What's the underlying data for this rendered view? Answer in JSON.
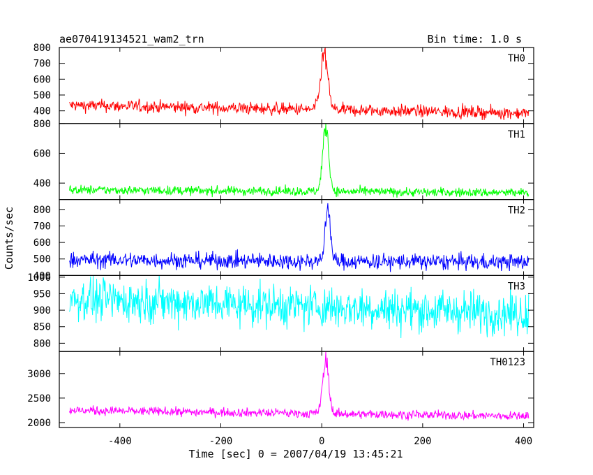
{
  "chart_data": {
    "type": "line",
    "title": "ae070419134521_wam2_trn",
    "bin_label": "Bin time: 1.0 s",
    "xlabel": "Time [sec] 0 = 2007/04/19 13:45:21",
    "ylabel": "Counts/sec",
    "xlim": [
      -520,
      420
    ],
    "x_ticks": [
      -400,
      -200,
      0,
      200,
      400
    ],
    "series_x_range": [
      -500,
      410
    ],
    "panels": [
      {
        "name": "TH0",
        "color": "#ff0000",
        "ylim": [
          320,
          800
        ],
        "y_ticks": [
          400,
          500,
          600,
          700,
          800
        ],
        "baseline_start": 435,
        "baseline_end": 385,
        "noise": 28,
        "peak": 780,
        "peak_time": 5,
        "peak_width": 7
      },
      {
        "name": "TH1",
        "color": "#00ff00",
        "ylim": [
          290,
          800
        ],
        "y_ticks": [
          400,
          600,
          800
        ],
        "baseline_start": 355,
        "baseline_end": 335,
        "noise": 22,
        "peak": 790,
        "peak_time": 8,
        "peak_width": 6
      },
      {
        "name": "TH2",
        "color": "#0000ff",
        "ylim": [
          400,
          860
        ],
        "y_ticks": [
          400,
          500,
          600,
          700,
          800
        ],
        "baseline_start": 495,
        "baseline_end": 480,
        "noise": 35,
        "peak": 840,
        "peak_time": 12,
        "peak_width": 5
      },
      {
        "name": "TH3",
        "color": "#00ffff",
        "ylim": [
          775,
          1005
        ],
        "y_ticks": [
          800,
          850,
          900,
          950,
          1000
        ],
        "baseline_start": 935,
        "baseline_end": 890,
        "noise": 45,
        "peak": 0,
        "peak_time": 10,
        "peak_width": 5
      },
      {
        "name": "TH0123",
        "color": "#ff00ff",
        "ylim": [
          1900,
          3450
        ],
        "y_ticks": [
          2000,
          2500,
          3000
        ],
        "baseline_start": 2250,
        "baseline_end": 2130,
        "noise": 65,
        "peak": 3320,
        "peak_time": 8,
        "peak_width": 6
      }
    ]
  }
}
